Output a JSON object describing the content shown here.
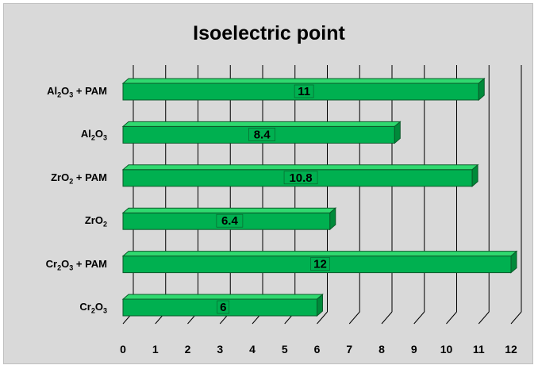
{
  "chart_data": {
    "type": "bar",
    "orientation": "horizontal",
    "title": "Isoelectric point",
    "xlabel": "",
    "ylabel": "",
    "xlim": [
      0,
      12
    ],
    "x_ticks": [
      0,
      1,
      2,
      3,
      4,
      5,
      6,
      7,
      8,
      9,
      10,
      11,
      12
    ],
    "grid": true,
    "legend": "none",
    "categories": [
      {
        "label": "Al2O3 + PAM",
        "parts": [
          [
            "Al",
            ""
          ],
          [
            "2",
            "sub"
          ],
          [
            "O",
            ""
          ],
          [
            "3",
            "sub"
          ],
          [
            " + PAM",
            ""
          ]
        ]
      },
      {
        "label": "Al2O3",
        "parts": [
          [
            "Al",
            ""
          ],
          [
            "2",
            "sub"
          ],
          [
            "O",
            ""
          ],
          [
            "3",
            "sub"
          ]
        ]
      },
      {
        "label": "ZrO2 + PAM",
        "parts": [
          [
            "ZrO",
            ""
          ],
          [
            "2",
            "sub"
          ],
          [
            " + PAM",
            ""
          ]
        ]
      },
      {
        "label": "ZrO2",
        "parts": [
          [
            "ZrO",
            ""
          ],
          [
            "2",
            "sub"
          ]
        ]
      },
      {
        "label": "Cr2O3 + PAM",
        "parts": [
          [
            "Cr",
            ""
          ],
          [
            "2",
            "sub"
          ],
          [
            "O",
            ""
          ],
          [
            "3",
            "sub"
          ],
          [
            " + PAM",
            ""
          ]
        ]
      },
      {
        "label": "Cr2O3",
        "parts": [
          [
            "Cr",
            ""
          ],
          [
            "2",
            "sub"
          ],
          [
            "O",
            ""
          ],
          [
            "3",
            "sub"
          ]
        ]
      }
    ],
    "values": [
      11,
      8.4,
      10.8,
      6.4,
      12,
      6
    ],
    "data_labels": [
      "11",
      "8.4",
      "10.8",
      "6.4",
      "12",
      "6"
    ],
    "colors": {
      "bar_front": "#00b050",
      "bar_top": "#2fd96f",
      "bar_side": "#008a3a",
      "bar_stroke": "#0b5a2a",
      "label_bg": "#00b050",
      "background": "#d9d9d9",
      "grid": "#000000"
    }
  }
}
